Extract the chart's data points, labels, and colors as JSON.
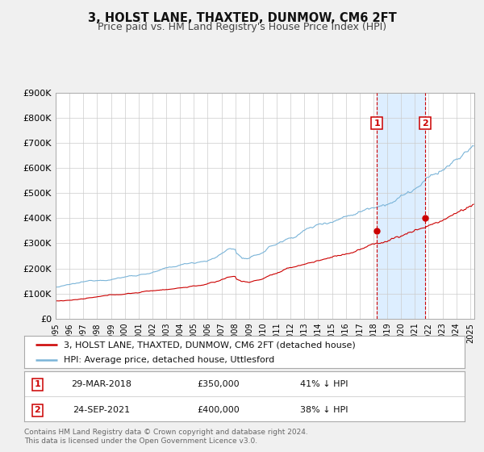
{
  "title": "3, HOLST LANE, THAXTED, DUNMOW, CM6 2FT",
  "subtitle": "Price paid vs. HM Land Registry's House Price Index (HPI)",
  "ylim": [
    0,
    900000
  ],
  "xlim_start": 1995.0,
  "xlim_end": 2025.3,
  "yticks": [
    0,
    100000,
    200000,
    300000,
    400000,
    500000,
    600000,
    700000,
    800000,
    900000
  ],
  "ytick_labels": [
    "£0",
    "£100K",
    "£200K",
    "£300K",
    "£400K",
    "£500K",
    "£600K",
    "£700K",
    "£800K",
    "£900K"
  ],
  "xticks": [
    1995,
    1996,
    1997,
    1998,
    1999,
    2000,
    2001,
    2002,
    2003,
    2004,
    2005,
    2006,
    2007,
    2008,
    2009,
    2010,
    2011,
    2012,
    2013,
    2014,
    2015,
    2016,
    2017,
    2018,
    2019,
    2020,
    2021,
    2022,
    2023,
    2024,
    2025
  ],
  "marker1_x": 2018.24,
  "marker1_y": 350000,
  "marker2_x": 2021.73,
  "marker2_y": 400000,
  "marker1_date": "29-MAR-2018",
  "marker1_price": "£350,000",
  "marker1_pct": "41% ↓ HPI",
  "marker2_date": "24-SEP-2021",
  "marker2_price": "£400,000",
  "marker2_pct": "38% ↓ HPI",
  "hpi_color": "#7ab4d8",
  "price_color": "#cc0000",
  "shade_color": "#ddeeff",
  "vline_color": "#cc0000",
  "grid_color": "#cccccc",
  "bg_color": "#f0f0f0",
  "plot_bg_color": "#ffffff",
  "legend_line1": "3, HOLST LANE, THAXTED, DUNMOW, CM6 2FT (detached house)",
  "legend_line2": "HPI: Average price, detached house, Uttlesford",
  "footer1": "Contains HM Land Registry data © Crown copyright and database right 2024.",
  "footer2": "This data is licensed under the Open Government Licence v3.0.",
  "title_fontsize": 10.5,
  "subtitle_fontsize": 9
}
